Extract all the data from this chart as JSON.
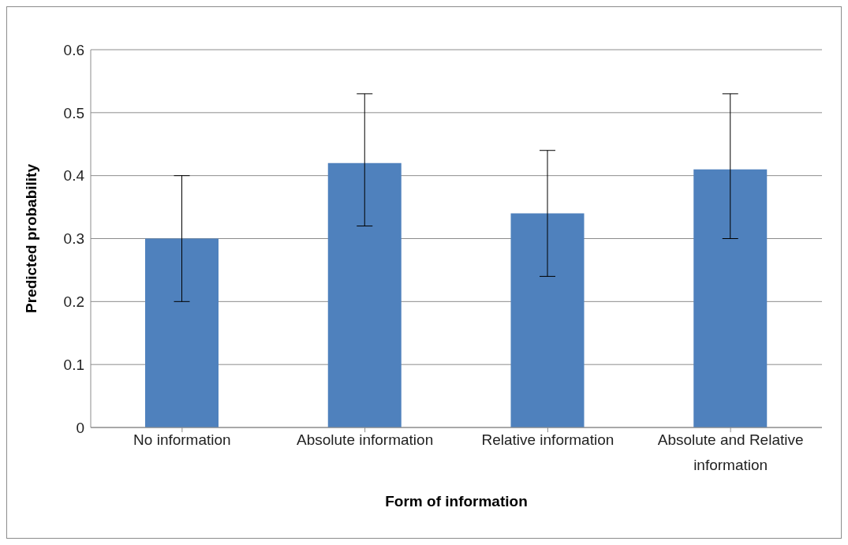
{
  "chart_data": {
    "type": "bar",
    "xlabel": "Form of information",
    "ylabel": "Predicted probability",
    "categories": [
      "No information",
      "Absolute information",
      "Relative information",
      "Absolute and Relative information"
    ],
    "values": [
      0.3,
      0.42,
      0.34,
      0.41
    ],
    "errors": [
      [
        0.2,
        0.4
      ],
      [
        0.32,
        0.53
      ],
      [
        0.24,
        0.44
      ],
      [
        0.3,
        0.53
      ]
    ],
    "color": "#4f81bd",
    "ylim": [
      0,
      0.6
    ],
    "yticks": [
      0,
      0.1,
      0.2,
      0.3,
      0.4,
      0.5,
      0.6
    ],
    "grid": "y",
    "legend": false
  }
}
